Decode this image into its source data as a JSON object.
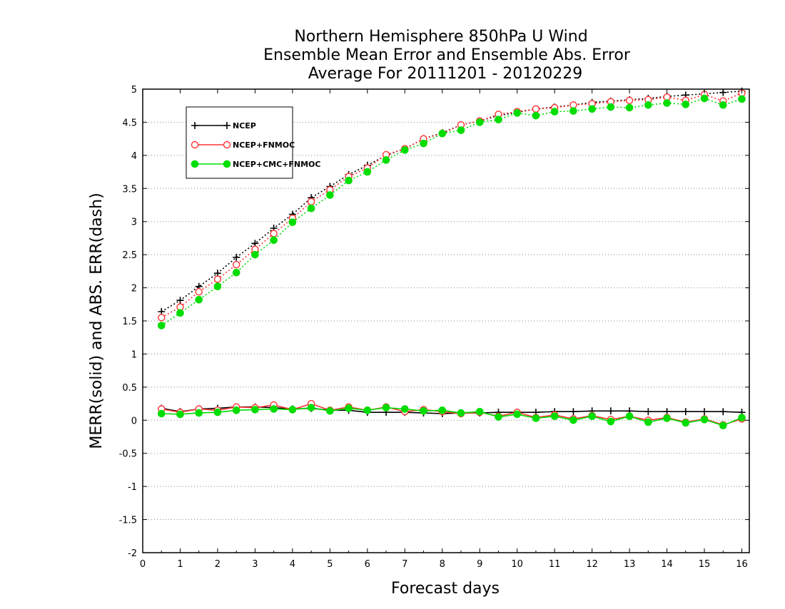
{
  "chart_data": {
    "type": "line",
    "title_lines": [
      "Northern Hemisphere 850hPa U Wind",
      "Ensemble Mean Error and Ensemble Abs. Error",
      "Average For 20111201 - 20120229"
    ],
    "xlabel": "Forecast days",
    "ylabel": "MERR(solid) and ABS. ERR(dash)",
    "xlim": [
      0,
      16.2
    ],
    "ylim": [
      -2,
      5
    ],
    "xticks": [
      "0",
      "1",
      "2",
      "3",
      "4",
      "5",
      "6",
      "7",
      "8",
      "9",
      "10",
      "11",
      "12",
      "13",
      "14",
      "15",
      "16"
    ],
    "yticks": [
      "5",
      "4.5",
      "4",
      "3.5",
      "3",
      "2.5",
      "2",
      "1.5",
      "1",
      "0.5",
      "0",
      "-0.5",
      "-1",
      "-1.5",
      "-2"
    ],
    "grid": "horizontal dotted",
    "legend_position": "top-left",
    "x": [
      0.5,
      1,
      1.5,
      2,
      2.5,
      3,
      3.5,
      4,
      4.5,
      5,
      5.5,
      6,
      6.5,
      7,
      7.5,
      8,
      8.5,
      9,
      9.5,
      10,
      10.5,
      11,
      11.5,
      12,
      12.5,
      13,
      13.5,
      14,
      14.5,
      15,
      15.5,
      16
    ],
    "series": [
      {
        "name": "NCEP",
        "color": "#000000",
        "marker": "plus",
        "mean_error": [
          0.18,
          0.13,
          0.17,
          0.18,
          0.2,
          0.2,
          0.19,
          0.17,
          0.18,
          0.15,
          0.15,
          0.12,
          0.12,
          0.12,
          0.11,
          0.1,
          0.11,
          0.11,
          0.12,
          0.12,
          0.12,
          0.13,
          0.13,
          0.14,
          0.14,
          0.14,
          0.13,
          0.13,
          0.13,
          0.13,
          0.13,
          0.12
        ],
        "abs_error": [
          1.64,
          1.81,
          2.02,
          2.22,
          2.46,
          2.67,
          2.9,
          3.11,
          3.36,
          3.53,
          3.71,
          3.85,
          4.0,
          4.1,
          4.25,
          4.34,
          4.46,
          4.52,
          4.6,
          4.65,
          4.7,
          4.73,
          4.76,
          4.8,
          4.82,
          4.84,
          4.86,
          4.89,
          4.91,
          4.93,
          4.95,
          4.97
        ]
      },
      {
        "name": "NCEP+FNMOC",
        "color": "#ff3333",
        "marker": "open-circle",
        "mean_error": [
          0.17,
          0.12,
          0.17,
          0.15,
          0.2,
          0.19,
          0.23,
          0.16,
          0.25,
          0.15,
          0.2,
          0.15,
          0.2,
          0.13,
          0.16,
          0.13,
          0.1,
          0.12,
          0.06,
          0.12,
          0.04,
          0.08,
          0.02,
          0.07,
          0.01,
          0.06,
          0.0,
          0.04,
          -0.03,
          0.02,
          -0.07,
          0.02
        ],
        "abs_error": [
          1.55,
          1.71,
          1.94,
          2.13,
          2.35,
          2.58,
          2.82,
          3.05,
          3.3,
          3.48,
          3.68,
          3.81,
          4.01,
          4.1,
          4.25,
          4.33,
          4.46,
          4.52,
          4.62,
          4.66,
          4.7,
          4.72,
          4.76,
          4.78,
          4.81,
          4.83,
          4.84,
          4.88,
          4.83,
          4.92,
          4.82,
          4.94
        ]
      },
      {
        "name": "NCEP+CMC+FNMOC",
        "color": "#00dd00",
        "marker": "filled-circle",
        "mean_error": [
          0.1,
          0.09,
          0.11,
          0.12,
          0.15,
          0.16,
          0.17,
          0.16,
          0.19,
          0.14,
          0.18,
          0.15,
          0.19,
          0.17,
          0.14,
          0.15,
          0.11,
          0.13,
          0.05,
          0.09,
          0.03,
          0.06,
          0.0,
          0.06,
          -0.02,
          0.06,
          -0.03,
          0.03,
          -0.04,
          0.01,
          -0.08,
          0.04
        ],
        "abs_error": [
          1.43,
          1.62,
          1.82,
          2.02,
          2.23,
          2.5,
          2.72,
          2.99,
          3.2,
          3.4,
          3.62,
          3.75,
          3.93,
          4.08,
          4.18,
          4.33,
          4.38,
          4.5,
          4.54,
          4.64,
          4.6,
          4.66,
          4.67,
          4.7,
          4.73,
          4.72,
          4.76,
          4.79,
          4.77,
          4.86,
          4.76,
          4.85
        ]
      }
    ]
  }
}
